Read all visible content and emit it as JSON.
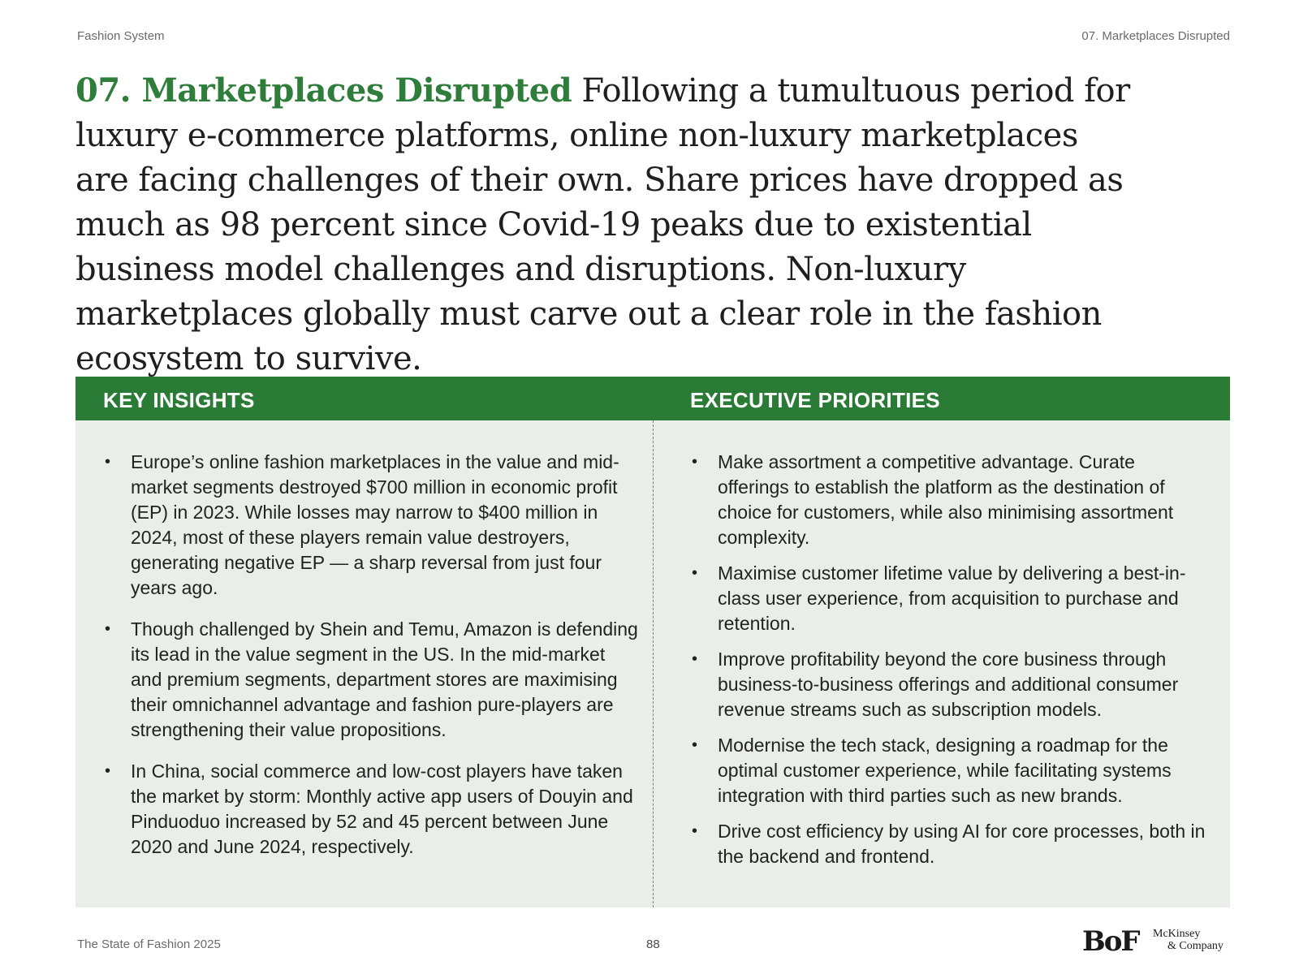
{
  "header": {
    "left": "Fashion System",
    "right": "07. Marketplaces Disrupted"
  },
  "intro": {
    "accent": "07. Marketplaces Disrupted",
    "text": " Following a tumultuous period for luxury e-commerce platforms, online non-luxury marketplaces are facing challenges of their own. Share prices have dropped as much as 98 percent since Covid-19 peaks due to existential business model challenges and disruptions. Non-luxury marketplaces globally must carve out a clear role in the fashion ecosystem to survive."
  },
  "panel": {
    "key_insights_title": "KEY INSIGHTS",
    "executive_priorities_title": "EXECUTIVE PRIORITIES",
    "bullet_char": "•",
    "key_insights": [
      "Europe’s online fashion marketplaces in the value and mid-market segments destroyed $700 million in economic profit (EP) in 2023. While losses may narrow to $400 million in 2024, most of these players remain value destroyers, generating negative EP — a sharp reversal from just four years ago.",
      "Though challenged by Shein and Temu, Amazon is defending its lead in the value segment in the US. In the mid-market and premium segments, department stores are maximising their omnichannel advantage and fashion pure-players are strengthening their value propositions.",
      "In China, social commerce and low-cost players have taken the market by storm: Monthly active app users of Douyin and Pinduoduo increased by 52 and 45 percent between June 2020 and June 2024, respectively."
    ],
    "executive_priorities": [
      "Make assortment a competitive advantage. Curate offerings to establish the platform as the destination of choice for customers, while also minimising assortment complexity.",
      "Maximise customer lifetime value by delivering a best-in-class user experience, from acquisition to purchase and retention.",
      "Improve profitability beyond the core business through business-to-business offerings and additional consumer revenue streams such as subscription models.",
      "Modernise the tech stack, designing a roadmap for the optimal customer experience, while facilitating systems integration with third parties such as new brands.",
      "Drive cost efficiency by using AI for core processes, both in the backend and frontend."
    ]
  },
  "footer": {
    "left": "The State of Fashion 2025",
    "page": "88",
    "logo_bof": "BoF",
    "logo_mckinsey_line1": "McKinsey",
    "logo_mckinsey_line2": "& Company"
  },
  "colors": {
    "accent_green": "#2e7d3a",
    "header_bar": "#2a7b35",
    "panel_bg": "#e9efe8"
  }
}
